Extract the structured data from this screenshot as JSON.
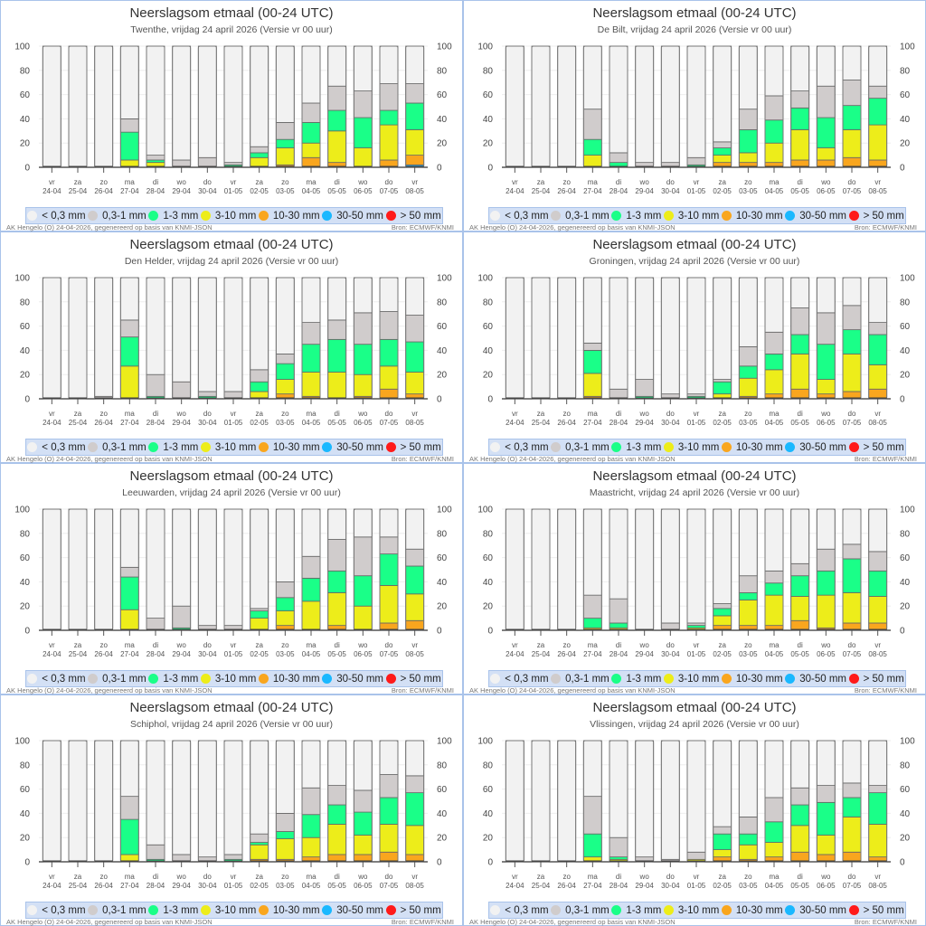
{
  "page": {
    "footer_left": "AK Hengelo (O) 24-04-2026, gegenereerd op basis van KNMI-JSON",
    "footer_right": "Bron: ECMWF/KNMI"
  },
  "legend": [
    {
      "label": "< 0,3 mm",
      "color": "#f2f2f2"
    },
    {
      "label": "0,3-1 mm",
      "color": "#d0cccc"
    },
    {
      "label": "1-3 mm",
      "color": "#1aff88"
    },
    {
      "label": "3-10 mm",
      "color": "#eded1a"
    },
    {
      "label": "10-30 mm",
      "color": "#f9a61e"
    },
    {
      "label": "30-50 mm",
      "color": "#1ab8ff"
    },
    {
      "label": "> 50 mm",
      "color": "#ff1a1a"
    }
  ],
  "chart_data": [
    {
      "type": "bar",
      "stacked": true,
      "title": "Neerslagsom etmaal (00-24 UTC)",
      "subtitle": "Twenthe, vrijdag 24 april 2026 (Versie vr 00 uur)",
      "ylim": [
        0,
        100
      ],
      "yticks": [
        0,
        20,
        40,
        60,
        80,
        100
      ],
      "days": [
        "vr",
        "za",
        "zo",
        "ma",
        "di",
        "wo",
        "do",
        "vr",
        "za",
        "zo",
        "ma",
        "di",
        "wo",
        "do",
        "vr"
      ],
      "dates": [
        "24-04",
        "25-04",
        "26-04",
        "27-04",
        "28-04",
        "29-04",
        "30-04",
        "01-05",
        "02-05",
        "03-05",
        "04-05",
        "05-05",
        "06-05",
        "07-05",
        "08-05"
      ],
      "cumulative_note": "values are cumulative percent tops per band: [30-50,10-30,3-10,1-3,0.3-1]; <0.3 fills to 100",
      "values": [
        [
          0,
          0,
          0,
          0,
          0
        ],
        [
          0,
          0,
          0,
          0,
          0
        ],
        [
          0,
          0,
          0,
          0,
          0
        ],
        [
          0,
          0,
          6,
          29,
          40
        ],
        [
          0,
          0,
          4,
          6,
          10
        ],
        [
          0,
          0,
          0,
          0,
          6
        ],
        [
          0,
          0,
          0,
          0,
          8
        ],
        [
          0,
          0,
          0,
          2,
          4
        ],
        [
          0,
          0,
          8,
          12,
          17
        ],
        [
          0,
          2,
          16,
          23,
          37
        ],
        [
          0,
          8,
          20,
          37,
          53
        ],
        [
          0,
          4,
          30,
          47,
          67
        ],
        [
          0,
          0,
          16,
          41,
          63
        ],
        [
          0,
          6,
          35,
          47,
          69
        ],
        [
          2,
          10,
          31,
          53,
          69
        ]
      ]
    },
    {
      "type": "bar",
      "stacked": true,
      "title": "Neerslagsom etmaal (00-24 UTC)",
      "subtitle": "De Bilt, vrijdag 24 april 2026 (Versie vr 00 uur)",
      "ylim": [
        0,
        100
      ],
      "yticks": [
        0,
        20,
        40,
        60,
        80,
        100
      ],
      "days": [
        "vr",
        "za",
        "zo",
        "ma",
        "di",
        "wo",
        "do",
        "vr",
        "za",
        "zo",
        "ma",
        "di",
        "wo",
        "do",
        "vr"
      ],
      "dates": [
        "24-04",
        "25-04",
        "26-04",
        "27-04",
        "28-04",
        "29-04",
        "30-04",
        "01-05",
        "02-05",
        "03-05",
        "04-05",
        "05-05",
        "06-05",
        "07-05",
        "08-05"
      ],
      "values": [
        [
          0,
          0,
          0,
          0,
          0
        ],
        [
          0,
          0,
          0,
          0,
          0
        ],
        [
          0,
          0,
          0,
          0,
          0
        ],
        [
          0,
          0,
          10,
          23,
          48
        ],
        [
          0,
          0,
          0,
          4,
          12
        ],
        [
          0,
          0,
          0,
          0,
          4
        ],
        [
          0,
          0,
          0,
          0,
          4
        ],
        [
          0,
          0,
          0,
          2,
          8
        ],
        [
          0,
          4,
          10,
          16,
          21
        ],
        [
          0,
          4,
          12,
          31,
          48
        ],
        [
          0,
          4,
          20,
          39,
          59
        ],
        [
          0,
          6,
          31,
          49,
          63
        ],
        [
          0,
          6,
          16,
          41,
          67
        ],
        [
          0,
          8,
          31,
          51,
          72
        ],
        [
          0,
          6,
          35,
          57,
          67
        ]
      ]
    },
    {
      "type": "bar",
      "stacked": true,
      "title": "Neerslagsom etmaal (00-24 UTC)",
      "subtitle": "Den Helder, vrijdag 24 april 2026 (Versie vr 00 uur)",
      "ylim": [
        0,
        100
      ],
      "yticks": [
        0,
        20,
        40,
        60,
        80,
        100
      ],
      "days": [
        "vr",
        "za",
        "zo",
        "ma",
        "di",
        "wo",
        "do",
        "vr",
        "za",
        "zo",
        "ma",
        "di",
        "wo",
        "do",
        "vr"
      ],
      "dates": [
        "24-04",
        "25-04",
        "26-04",
        "27-04",
        "28-04",
        "29-04",
        "30-04",
        "01-05",
        "02-05",
        "03-05",
        "04-05",
        "05-05",
        "06-05",
        "07-05",
        "08-05"
      ],
      "values": [
        [
          0,
          0,
          0,
          0,
          0
        ],
        [
          0,
          0,
          0,
          0,
          0
        ],
        [
          0,
          0,
          0,
          0,
          2
        ],
        [
          0,
          0,
          27,
          51,
          65
        ],
        [
          0,
          0,
          0,
          2,
          20
        ],
        [
          0,
          0,
          0,
          0,
          14
        ],
        [
          0,
          0,
          0,
          2,
          6
        ],
        [
          0,
          0,
          0,
          0,
          6
        ],
        [
          0,
          0,
          6,
          14,
          24
        ],
        [
          0,
          4,
          16,
          29,
          37
        ],
        [
          0,
          2,
          22,
          45,
          63
        ],
        [
          0,
          0,
          22,
          49,
          65
        ],
        [
          0,
          2,
          20,
          45,
          71
        ],
        [
          0,
          8,
          27,
          49,
          72
        ],
        [
          0,
          4,
          22,
          47,
          69
        ]
      ]
    },
    {
      "type": "bar",
      "stacked": true,
      "title": "Neerslagsom etmaal (00-24 UTC)",
      "subtitle": "Groningen, vrijdag 24 april 2026 (Versie vr 00 uur)",
      "ylim": [
        0,
        100
      ],
      "yticks": [
        0,
        20,
        40,
        60,
        80,
        100
      ],
      "days": [
        "vr",
        "za",
        "zo",
        "ma",
        "di",
        "wo",
        "do",
        "vr",
        "za",
        "zo",
        "ma",
        "di",
        "wo",
        "do",
        "vr"
      ],
      "dates": [
        "24-04",
        "25-04",
        "26-04",
        "27-04",
        "28-04",
        "29-04",
        "30-04",
        "01-05",
        "02-05",
        "03-05",
        "04-05",
        "05-05",
        "06-05",
        "07-05",
        "08-05"
      ],
      "values": [
        [
          0,
          0,
          0,
          0,
          0
        ],
        [
          0,
          0,
          0,
          0,
          0
        ],
        [
          0,
          0,
          0,
          0,
          0
        ],
        [
          0,
          2,
          21,
          40,
          46
        ],
        [
          0,
          0,
          0,
          0,
          8
        ],
        [
          0,
          0,
          0,
          2,
          16
        ],
        [
          0,
          0,
          0,
          0,
          4
        ],
        [
          0,
          0,
          0,
          2,
          4
        ],
        [
          0,
          0,
          4,
          14,
          16
        ],
        [
          0,
          2,
          17,
          27,
          43
        ],
        [
          0,
          4,
          24,
          37,
          55
        ],
        [
          0,
          8,
          37,
          53,
          75
        ],
        [
          0,
          4,
          16,
          45,
          71
        ],
        [
          0,
          6,
          37,
          57,
          77
        ],
        [
          0,
          8,
          28,
          53,
          63
        ]
      ]
    },
    {
      "type": "bar",
      "stacked": true,
      "title": "Neerslagsom etmaal (00-24 UTC)",
      "subtitle": "Leeuwarden, vrijdag 24 april 2026 (Versie vr 00 uur)",
      "ylim": [
        0,
        100
      ],
      "yticks": [
        0,
        20,
        40,
        60,
        80,
        100
      ],
      "days": [
        "vr",
        "za",
        "zo",
        "ma",
        "di",
        "wo",
        "do",
        "vr",
        "za",
        "zo",
        "ma",
        "di",
        "wo",
        "do",
        "vr"
      ],
      "dates": [
        "24-04",
        "25-04",
        "26-04",
        "27-04",
        "28-04",
        "29-04",
        "30-04",
        "01-05",
        "02-05",
        "03-05",
        "04-05",
        "05-05",
        "06-05",
        "07-05",
        "08-05"
      ],
      "values": [
        [
          0,
          0,
          0,
          0,
          0
        ],
        [
          0,
          0,
          0,
          0,
          0
        ],
        [
          0,
          0,
          0,
          0,
          0
        ],
        [
          0,
          0,
          17,
          44,
          52
        ],
        [
          0,
          0,
          0,
          0,
          10
        ],
        [
          0,
          0,
          0,
          2,
          20
        ],
        [
          0,
          0,
          0,
          0,
          4
        ],
        [
          0,
          0,
          0,
          0,
          4
        ],
        [
          0,
          0,
          10,
          16,
          18
        ],
        [
          0,
          4,
          16,
          27,
          40
        ],
        [
          0,
          0,
          24,
          43,
          61
        ],
        [
          0,
          4,
          31,
          49,
          75
        ],
        [
          0,
          0,
          20,
          45,
          77
        ],
        [
          0,
          6,
          37,
          63,
          77
        ],
        [
          0,
          8,
          30,
          53,
          67
        ]
      ]
    },
    {
      "type": "bar",
      "stacked": true,
      "title": "Neerslagsom etmaal (00-24 UTC)",
      "subtitle": "Maastricht, vrijdag 24 april 2026 (Versie vr 00 uur)",
      "ylim": [
        0,
        100
      ],
      "yticks": [
        0,
        20,
        40,
        60,
        80,
        100
      ],
      "days": [
        "vr",
        "za",
        "zo",
        "ma",
        "di",
        "wo",
        "do",
        "vr",
        "za",
        "zo",
        "ma",
        "di",
        "wo",
        "do",
        "vr"
      ],
      "dates": [
        "24-04",
        "25-04",
        "26-04",
        "27-04",
        "28-04",
        "29-04",
        "30-04",
        "01-05",
        "02-05",
        "03-05",
        "04-05",
        "05-05",
        "06-05",
        "07-05",
        "08-05"
      ],
      "values": [
        [
          0,
          0,
          0,
          0,
          0
        ],
        [
          0,
          0,
          0,
          0,
          0
        ],
        [
          0,
          0,
          0,
          0,
          0
        ],
        [
          0,
          0,
          2,
          10,
          29
        ],
        [
          0,
          0,
          2,
          6,
          26
        ],
        [
          0,
          0,
          0,
          0,
          0
        ],
        [
          0,
          0,
          0,
          0,
          6
        ],
        [
          0,
          0,
          2,
          4,
          6
        ],
        [
          0,
          4,
          12,
          18,
          22
        ],
        [
          0,
          4,
          25,
          31,
          45
        ],
        [
          0,
          4,
          29,
          39,
          49
        ],
        [
          0,
          8,
          28,
          45,
          55
        ],
        [
          0,
          2,
          29,
          49,
          67
        ],
        [
          0,
          6,
          31,
          59,
          71
        ],
        [
          0,
          6,
          28,
          49,
          65
        ]
      ]
    },
    {
      "type": "bar",
      "stacked": true,
      "title": "Neerslagsom etmaal (00-24 UTC)",
      "subtitle": "Schiphol, vrijdag 24 april 2026 (Versie vr 00 uur)",
      "ylim": [
        0,
        100
      ],
      "yticks": [
        0,
        20,
        40,
        60,
        80,
        100
      ],
      "days": [
        "vr",
        "za",
        "zo",
        "ma",
        "di",
        "wo",
        "do",
        "vr",
        "za",
        "zo",
        "ma",
        "di",
        "wo",
        "do",
        "vr"
      ],
      "dates": [
        "24-04",
        "25-04",
        "26-04",
        "27-04",
        "28-04",
        "29-04",
        "30-04",
        "01-05",
        "02-05",
        "03-05",
        "04-05",
        "05-05",
        "06-05",
        "07-05",
        "08-05"
      ],
      "values": [
        [
          0,
          0,
          0,
          0,
          0
        ],
        [
          0,
          0,
          0,
          0,
          0
        ],
        [
          0,
          0,
          0,
          0,
          0
        ],
        [
          0,
          0,
          6,
          35,
          54
        ],
        [
          0,
          0,
          0,
          2,
          14
        ],
        [
          0,
          0,
          0,
          0,
          6
        ],
        [
          0,
          0,
          0,
          0,
          4
        ],
        [
          0,
          0,
          0,
          2,
          6
        ],
        [
          0,
          2,
          14,
          16,
          23
        ],
        [
          0,
          2,
          19,
          25,
          40
        ],
        [
          0,
          4,
          20,
          39,
          61
        ],
        [
          0,
          6,
          31,
          47,
          63
        ],
        [
          0,
          6,
          22,
          41,
          59
        ],
        [
          0,
          8,
          31,
          53,
          72
        ],
        [
          0,
          6,
          30,
          57,
          71
        ]
      ]
    },
    {
      "type": "bar",
      "stacked": true,
      "title": "Neerslagsom etmaal (00-24 UTC)",
      "subtitle": "Vlissingen, vrijdag 24 april 2026 (Versie vr 00 uur)",
      "ylim": [
        0,
        100
      ],
      "yticks": [
        0,
        20,
        40,
        60,
        80,
        100
      ],
      "days": [
        "vr",
        "za",
        "zo",
        "ma",
        "di",
        "wo",
        "do",
        "vr",
        "za",
        "zo",
        "ma",
        "di",
        "wo",
        "do",
        "vr"
      ],
      "dates": [
        "24-04",
        "25-04",
        "26-04",
        "27-04",
        "28-04",
        "29-04",
        "30-04",
        "01-05",
        "02-05",
        "03-05",
        "04-05",
        "05-05",
        "06-05",
        "07-05",
        "08-05"
      ],
      "values": [
        [
          0,
          0,
          0,
          0,
          0
        ],
        [
          0,
          0,
          0,
          0,
          0
        ],
        [
          0,
          0,
          0,
          0,
          0
        ],
        [
          0,
          0,
          4,
          23,
          54
        ],
        [
          0,
          0,
          2,
          4,
          20
        ],
        [
          0,
          0,
          0,
          0,
          4
        ],
        [
          0,
          0,
          0,
          0,
          2
        ],
        [
          0,
          0,
          2,
          2,
          8
        ],
        [
          0,
          4,
          10,
          23,
          29
        ],
        [
          0,
          2,
          14,
          23,
          37
        ],
        [
          0,
          4,
          16,
          33,
          53
        ],
        [
          0,
          8,
          30,
          47,
          61
        ],
        [
          0,
          6,
          22,
          49,
          63
        ],
        [
          0,
          8,
          37,
          53,
          65
        ],
        [
          0,
          4,
          31,
          57,
          63
        ]
      ]
    }
  ]
}
